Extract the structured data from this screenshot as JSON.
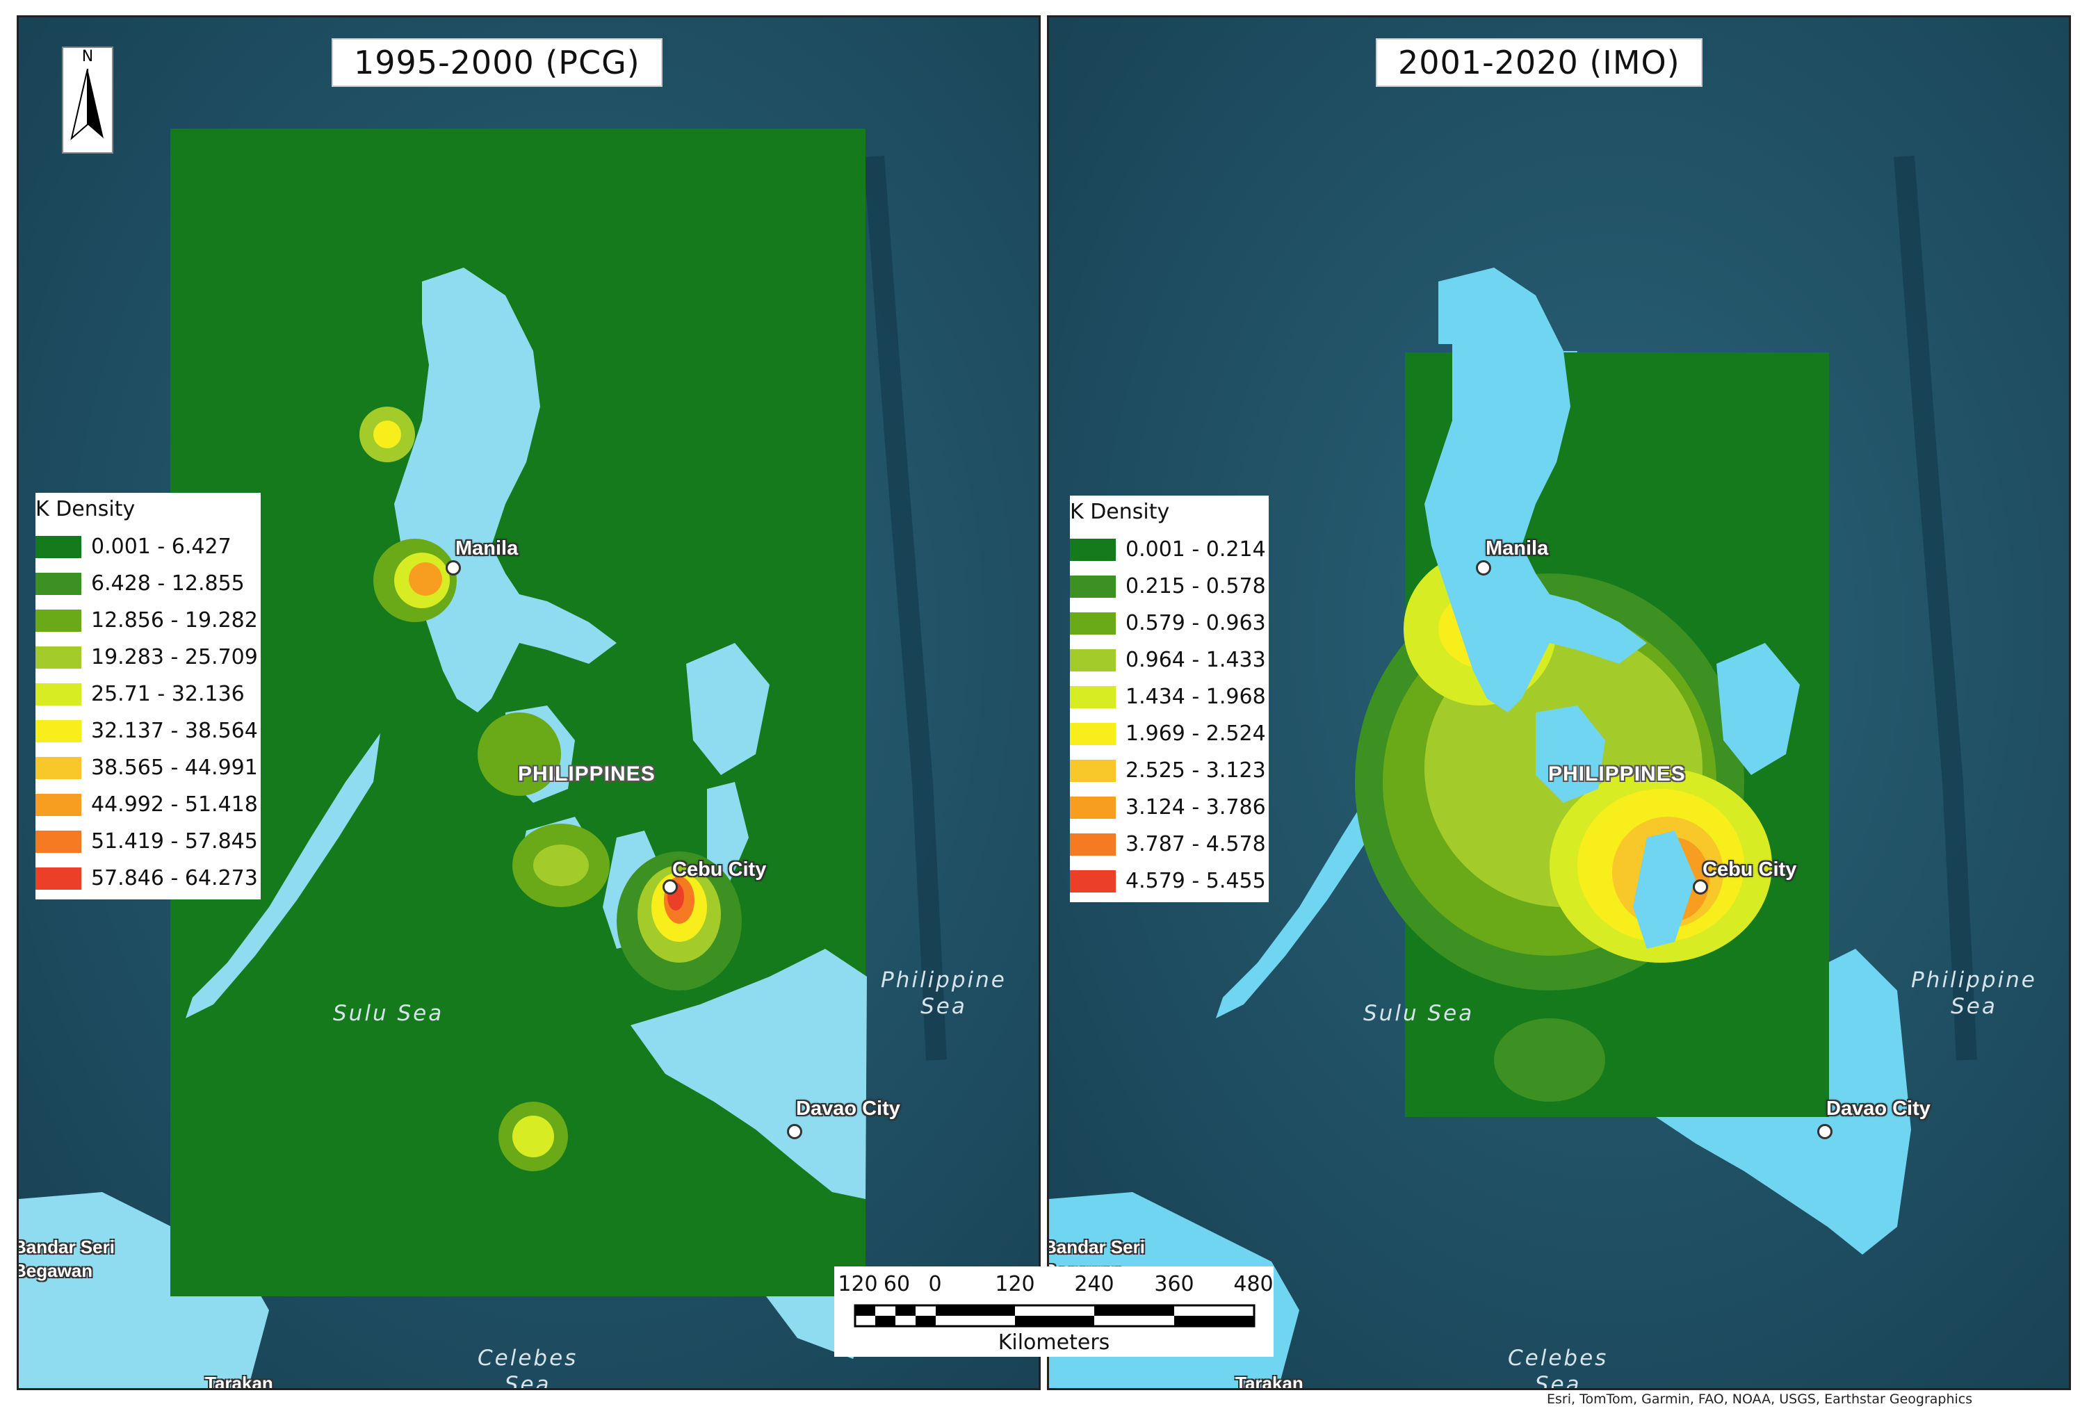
{
  "maps": [
    {
      "title": "1995-2000 (PCG)",
      "north_label": "N",
      "legend": {
        "title": "K Density",
        "items": [
          {
            "range": "0.001 - 6.427",
            "color": "#147a1c"
          },
          {
            "range": "6.428 - 12.855",
            "color": "#3c9122"
          },
          {
            "range": "12.856 - 19.282",
            "color": "#6aa917"
          },
          {
            "range": "19.283 - 25.709",
            "color": "#a3cc2b"
          },
          {
            "range": "25.71 - 32.136",
            "color": "#d7ec22"
          },
          {
            "range": "32.137 - 38.564",
            "color": "#f7ee1b"
          },
          {
            "range": "38.565 - 44.991",
            "color": "#f8c72a"
          },
          {
            "range": "44.992 - 51.418",
            "color": "#f79e20"
          },
          {
            "range": "51.419 - 57.845",
            "color": "#f57a22"
          },
          {
            "range": "57.846 - 64.273",
            "color": "#ec3f28"
          }
        ]
      },
      "places": {
        "manila": "Manila",
        "cebu": "Cebu City",
        "davao": "Davao City",
        "country": "PHILIPPINES",
        "sulu_sea": "Sulu Sea",
        "philippine_sea": [
          "Philippine",
          "Sea"
        ],
        "celebes_sea": [
          "Celebes",
          "Sea"
        ],
        "bandar": [
          "Bandar Seri",
          "Begawan"
        ],
        "tarakan": "Tarakan"
      }
    },
    {
      "title": "2001-2020 (IMO)",
      "legend": {
        "title": "K Density",
        "items": [
          {
            "range": "0.001 - 0.214",
            "color": "#147a1c"
          },
          {
            "range": "0.215 - 0.578",
            "color": "#3c9122"
          },
          {
            "range": "0.579 - 0.963",
            "color": "#6aa917"
          },
          {
            "range": "0.964 - 1.433",
            "color": "#a3cc2b"
          },
          {
            "range": "1.434 - 1.968",
            "color": "#d7ec22"
          },
          {
            "range": "1.969 - 2.524",
            "color": "#f7ee1b"
          },
          {
            "range": "2.525 - 3.123",
            "color": "#f8c72a"
          },
          {
            "range": "3.124 - 3.786",
            "color": "#f79e20"
          },
          {
            "range": "3.787 - 4.578",
            "color": "#f57a22"
          },
          {
            "range": "4.579 - 5.455",
            "color": "#ec3f28"
          }
        ]
      },
      "places": {
        "manila": "Manila",
        "cebu": "Cebu City",
        "davao": "Davao City",
        "country": "PHILIPPINES",
        "sulu_sea": "Sulu Sea",
        "philippine_sea": [
          "Philippine",
          "Sea"
        ],
        "celebes_sea": [
          "Celebes",
          "Sea"
        ],
        "bandar": [
          "Bandar Seri",
          "Begawan"
        ],
        "tarakan": "Tarakan"
      }
    }
  ],
  "scale_bar": {
    "ticks": [
      "120",
      "60",
      "0",
      "120",
      "240",
      "360",
      "480"
    ],
    "units": "Kilometers"
  },
  "credits": "Esri, TomTom, Garmin, FAO, NOAA, USGS, Earthstar Geographics",
  "colors": {
    "ocean": "#1f4f63",
    "land": "#8fdcf0",
    "density_base": "#147a1c",
    "city_dot": "#ffffff"
  }
}
